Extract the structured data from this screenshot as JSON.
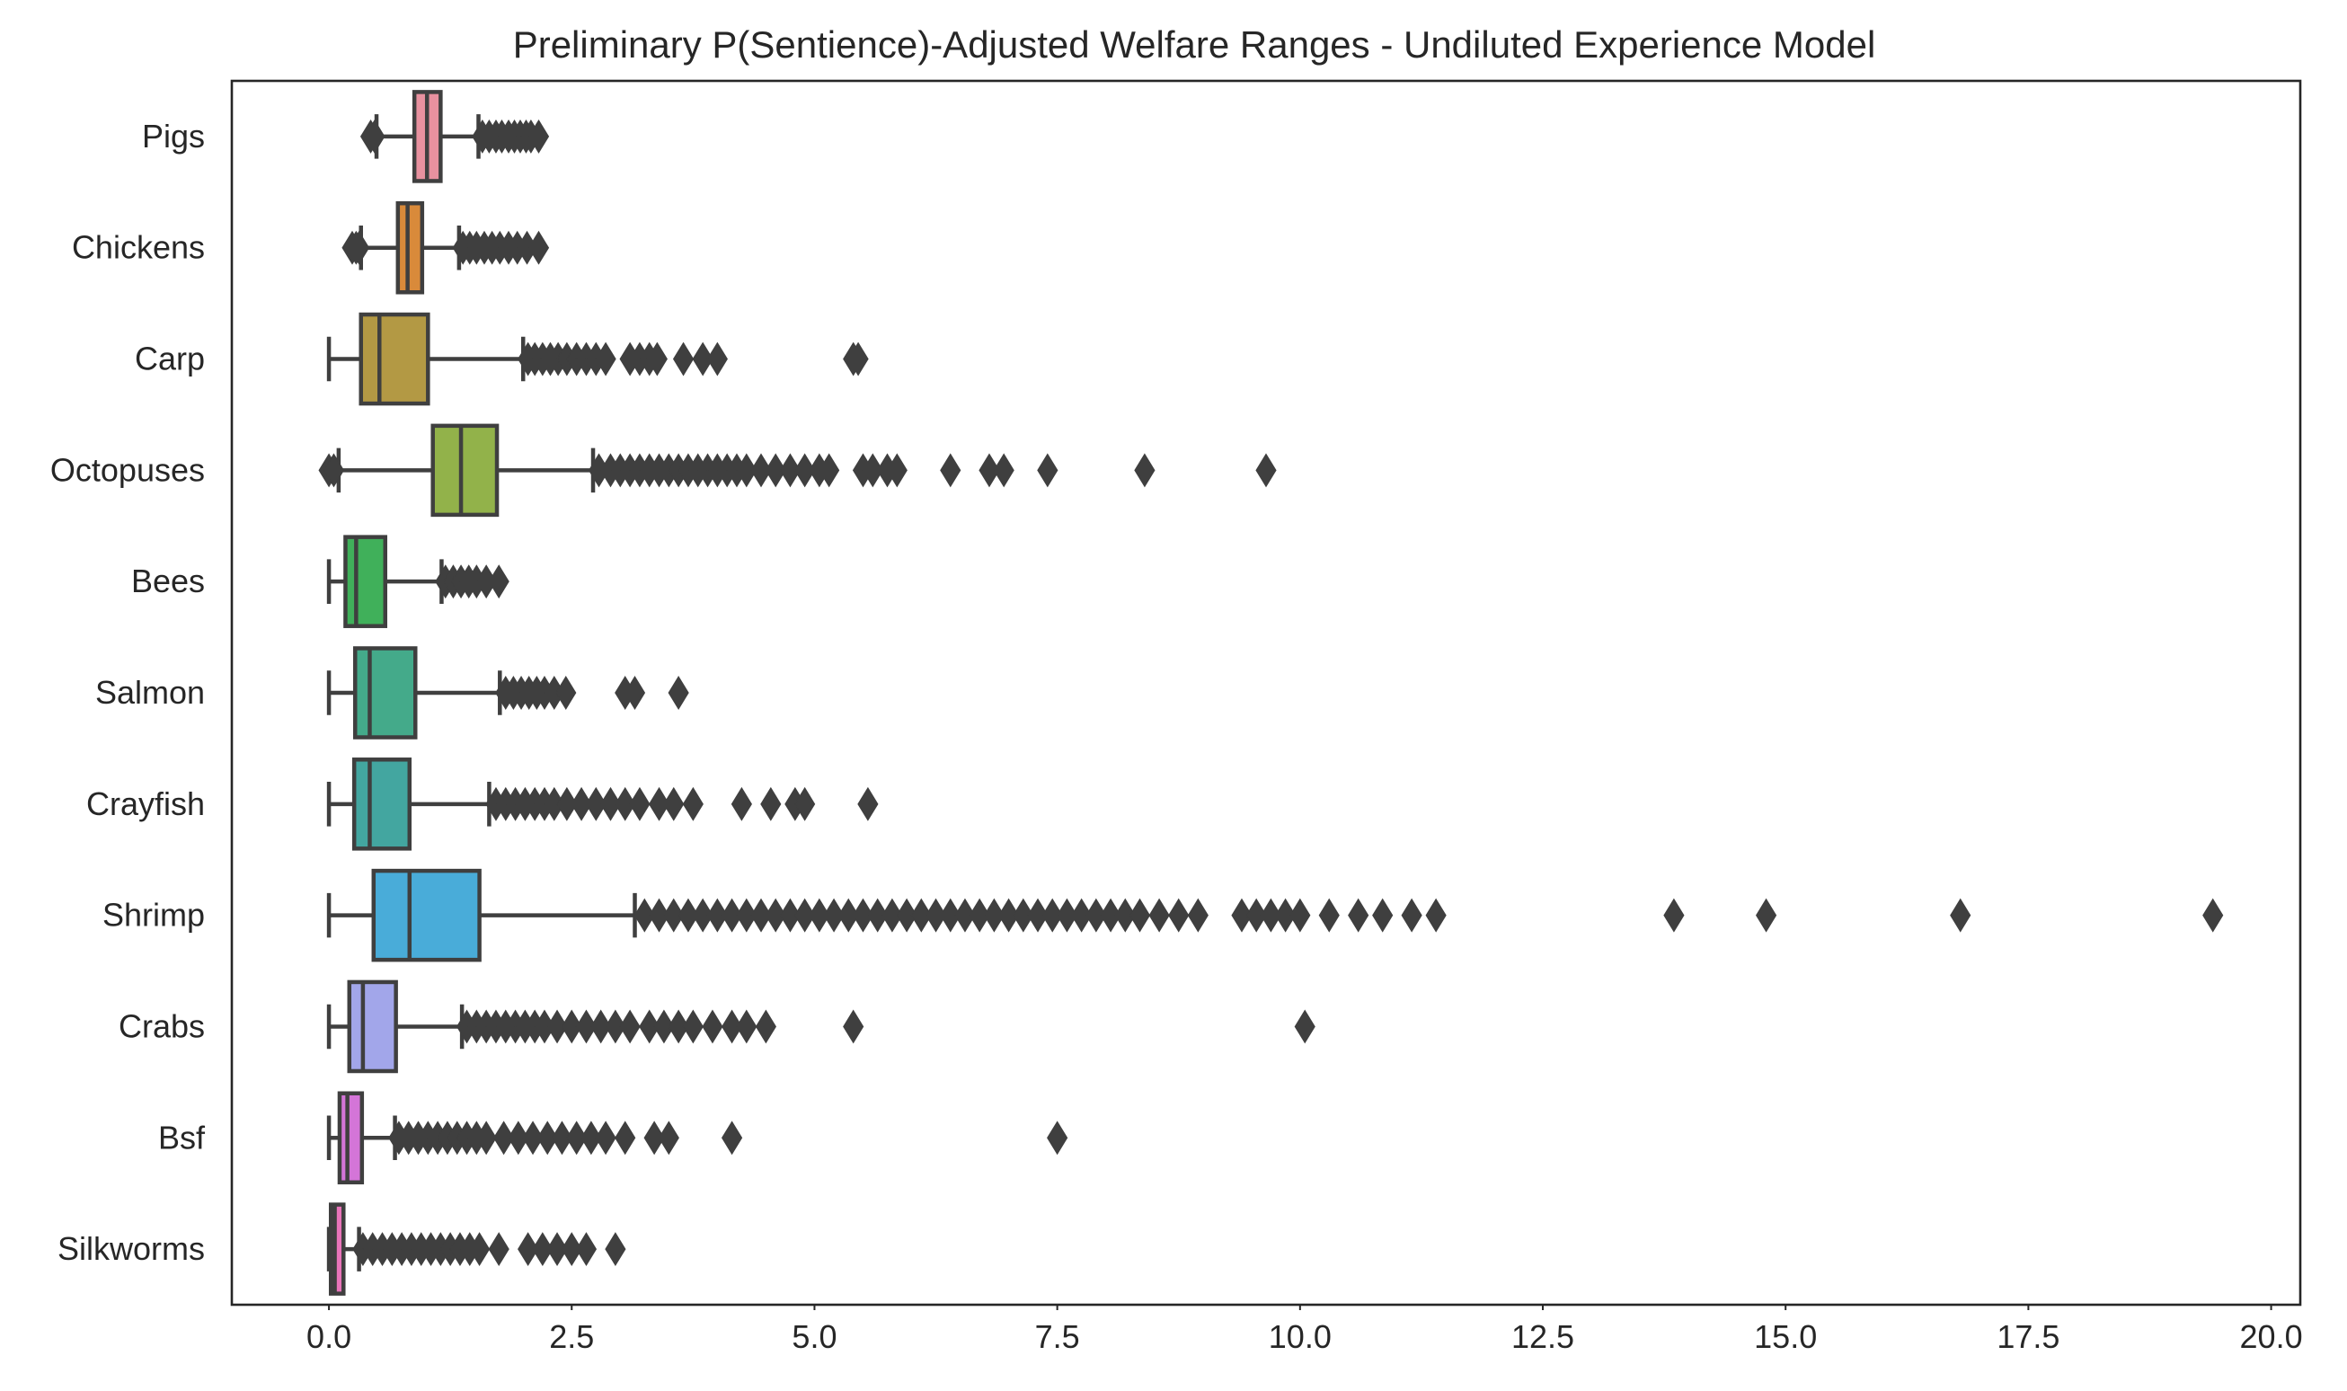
{
  "chart_data": {
    "type": "boxplot",
    "orientation": "horizontal",
    "title": "Preliminary P(Sentience)-Adjusted Welfare Ranges - Undiluted Experience Model",
    "xlabel": "",
    "ylabel": "",
    "xlim": [
      -1.0,
      20.3
    ],
    "xticks": [
      0.0,
      2.5,
      5.0,
      7.5,
      10.0,
      12.5,
      15.0,
      17.5,
      20.0
    ],
    "xtick_labels": [
      "0.0",
      "2.5",
      "5.0",
      "7.5",
      "10.0",
      "12.5",
      "15.0",
      "17.5",
      "20.0"
    ],
    "grid": false,
    "legend": "none",
    "categories": [
      "Pigs",
      "Chickens",
      "Carp",
      "Octopuses",
      "Bees",
      "Salmon",
      "Crayfish",
      "Shrimp",
      "Crabs",
      "Bsf",
      "Silkworms"
    ],
    "series": [
      {
        "name": "Pigs",
        "color": "#e8919f",
        "whisker_low": 0.49,
        "q1": 0.88,
        "median": 1.01,
        "q3": 1.15,
        "whisker_high": 1.54,
        "fliers": [
          0.43,
          0.47,
          1.58,
          1.65,
          1.72,
          1.78,
          1.85,
          1.91,
          1.97,
          2.03,
          2.08,
          2.16
        ]
      },
      {
        "name": "Chickens",
        "color": "#d98a3a",
        "whisker_low": 0.33,
        "q1": 0.71,
        "median": 0.81,
        "q3": 0.96,
        "whisker_high": 1.34,
        "fliers": [
          0.24,
          0.28,
          0.31,
          1.38,
          1.45,
          1.52,
          1.6,
          1.68,
          1.76,
          1.85,
          1.94,
          2.04,
          2.16
        ]
      },
      {
        "name": "Carp",
        "color": "#b39944",
        "whisker_low": 0.0,
        "q1": 0.33,
        "median": 0.52,
        "q3": 1.02,
        "whisker_high": 2.0,
        "fliers": [
          2.05,
          2.12,
          2.2,
          2.28,
          2.36,
          2.45,
          2.55,
          2.65,
          2.75,
          2.85,
          3.1,
          3.2,
          3.3,
          3.38,
          3.65,
          3.85,
          4.0,
          5.4,
          5.45
        ]
      },
      {
        "name": "Octopuses",
        "color": "#92b24a",
        "whisker_low": 0.1,
        "q1": 1.07,
        "median": 1.36,
        "q3": 1.73,
        "whisker_high": 2.72,
        "fliers": [
          0.0,
          0.05,
          2.78,
          2.9,
          3.0,
          3.1,
          3.2,
          3.3,
          3.4,
          3.5,
          3.6,
          3.7,
          3.8,
          3.9,
          4.0,
          4.1,
          4.2,
          4.3,
          4.45,
          4.6,
          4.75,
          4.9,
          5.05,
          5.15,
          5.5,
          5.6,
          5.75,
          5.85,
          6.4,
          6.8,
          6.95,
          7.4,
          8.4,
          9.65
        ]
      },
      {
        "name": "Bees",
        "color": "#40b05a",
        "whisker_low": 0.0,
        "q1": 0.17,
        "median": 0.28,
        "q3": 0.58,
        "whisker_high": 1.16,
        "fliers": [
          1.2,
          1.28,
          1.36,
          1.44,
          1.52,
          1.62,
          1.75
        ]
      },
      {
        "name": "Salmon",
        "color": "#44aa8a",
        "whisker_low": 0.0,
        "q1": 0.27,
        "median": 0.42,
        "q3": 0.89,
        "whisker_high": 1.76,
        "fliers": [
          1.82,
          1.9,
          1.98,
          2.06,
          2.14,
          2.22,
          2.32,
          2.44,
          3.05,
          3.15,
          3.6
        ]
      },
      {
        "name": "Crayfish",
        "color": "#43a6a0",
        "whisker_low": 0.0,
        "q1": 0.26,
        "median": 0.42,
        "q3": 0.83,
        "whisker_high": 1.65,
        "fliers": [
          1.72,
          1.82,
          1.92,
          2.02,
          2.12,
          2.22,
          2.32,
          2.45,
          2.6,
          2.75,
          2.9,
          3.05,
          3.2,
          3.4,
          3.55,
          3.75,
          4.25,
          4.55,
          4.8,
          4.9,
          5.55
        ]
      },
      {
        "name": "Shrimp",
        "color": "#49acd9",
        "whisker_low": 0.0,
        "q1": 0.46,
        "median": 0.83,
        "q3": 1.55,
        "whisker_high": 3.15,
        "fliers": [
          3.25,
          3.4,
          3.55,
          3.7,
          3.85,
          4.0,
          4.15,
          4.3,
          4.45,
          4.6,
          4.75,
          4.9,
          5.05,
          5.2,
          5.35,
          5.5,
          5.65,
          5.8,
          5.95,
          6.1,
          6.25,
          6.4,
          6.55,
          6.7,
          6.85,
          7.0,
          7.15,
          7.3,
          7.45,
          7.6,
          7.75,
          7.9,
          8.05,
          8.2,
          8.35,
          8.55,
          8.75,
          8.95,
          9.4,
          9.55,
          9.7,
          9.85,
          10.0,
          10.3,
          10.6,
          10.85,
          11.15,
          11.4,
          13.85,
          14.8,
          16.8,
          19.4
        ]
      },
      {
        "name": "Crabs",
        "color": "#a2a6ea",
        "whisker_low": 0.0,
        "q1": 0.21,
        "median": 0.35,
        "q3": 0.69,
        "whisker_high": 1.37,
        "fliers": [
          1.42,
          1.52,
          1.62,
          1.72,
          1.82,
          1.92,
          2.02,
          2.12,
          2.22,
          2.35,
          2.5,
          2.65,
          2.8,
          2.95,
          3.1,
          3.3,
          3.45,
          3.6,
          3.75,
          3.95,
          4.15,
          4.3,
          4.5,
          5.4,
          10.05
        ]
      },
      {
        "name": "Bsf",
        "color": "#d475d8",
        "whisker_low": 0.0,
        "q1": 0.11,
        "median": 0.19,
        "q3": 0.34,
        "whisker_high": 0.68,
        "fliers": [
          0.72,
          0.82,
          0.92,
          1.02,
          1.12,
          1.22,
          1.32,
          1.42,
          1.52,
          1.62,
          1.8,
          1.95,
          2.1,
          2.25,
          2.4,
          2.55,
          2.7,
          2.85,
          3.05,
          3.35,
          3.5,
          4.15,
          7.5
        ]
      },
      {
        "name": "Silkworms",
        "color": "#e874b9",
        "whisker_low": 0.0,
        "q1": 0.02,
        "median": 0.06,
        "q3": 0.15,
        "whisker_high": 0.31,
        "fliers": [
          0.35,
          0.45,
          0.55,
          0.65,
          0.75,
          0.85,
          0.95,
          1.05,
          1.15,
          1.25,
          1.35,
          1.45,
          1.55,
          1.75,
          2.05,
          2.2,
          2.35,
          2.5,
          2.65,
          2.95
        ]
      }
    ]
  }
}
